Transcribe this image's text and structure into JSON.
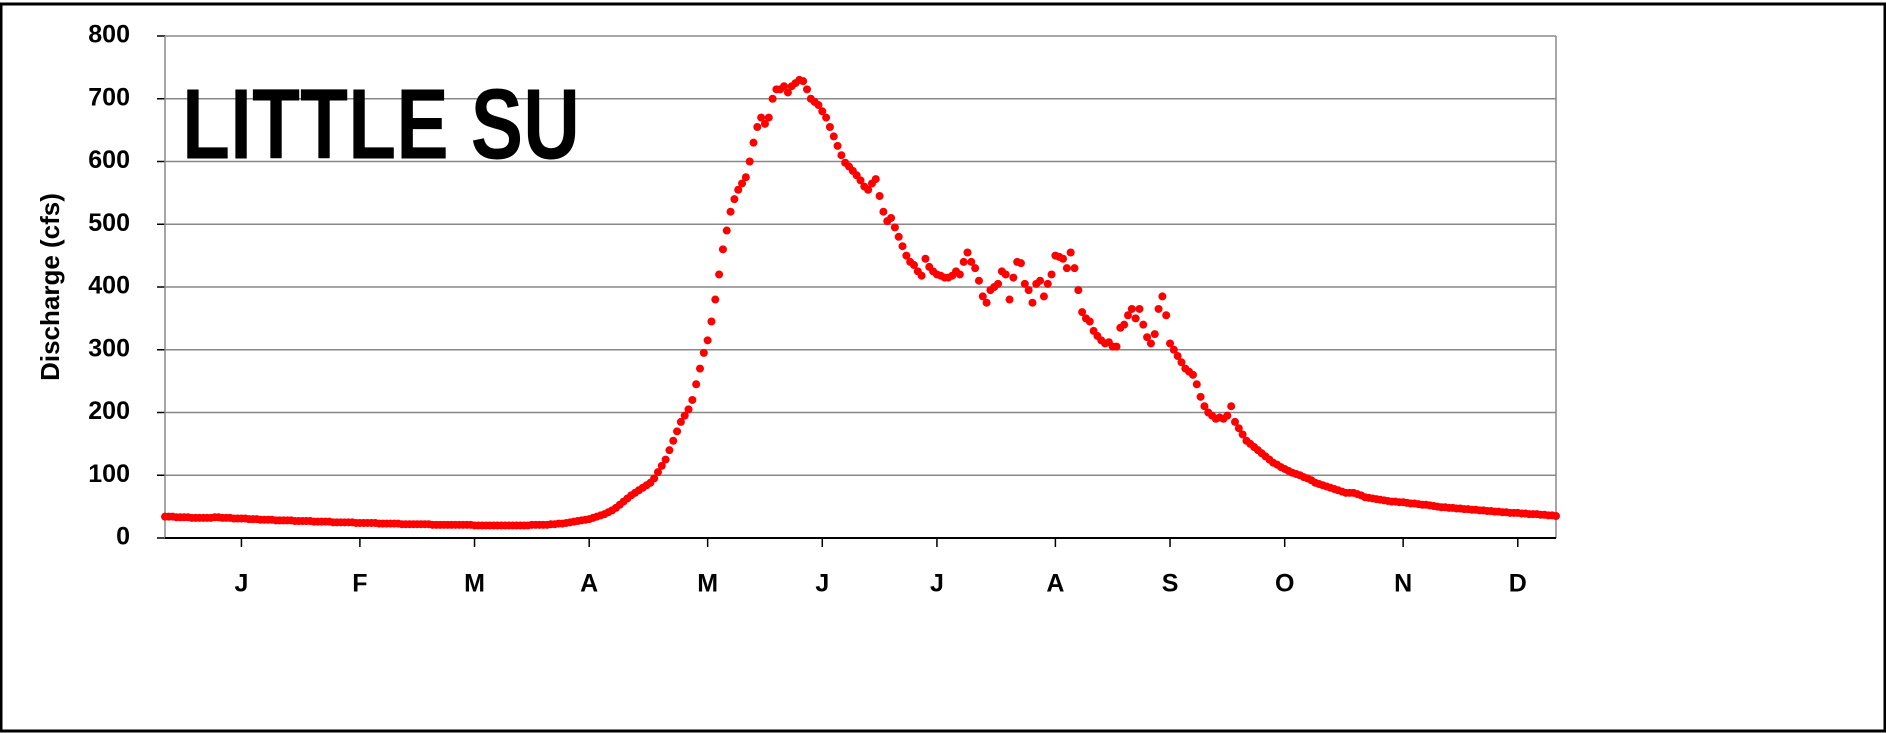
{
  "chart_data": {
    "type": "scatter",
    "title": "LITTLE SU",
    "y_label": "Discharge (cfs)",
    "color": "#ff0000",
    "grid": true,
    "xlim": [
      0,
      364
    ],
    "ylim": [
      0,
      800
    ],
    "yticks": [
      0,
      100,
      200,
      300,
      400,
      500,
      600,
      700,
      800
    ],
    "xticks": [
      {
        "value": 20,
        "label": "J"
      },
      {
        "value": 51,
        "label": "F"
      },
      {
        "value": 81,
        "label": "M"
      },
      {
        "value": 111,
        "label": "A"
      },
      {
        "value": 142,
        "label": "M"
      },
      {
        "value": 172,
        "label": "J"
      },
      {
        "value": 202,
        "label": "J"
      },
      {
        "value": 233,
        "label": "A"
      },
      {
        "value": 263,
        "label": "S"
      },
      {
        "value": 293,
        "label": "O"
      },
      {
        "value": 324,
        "label": "N"
      },
      {
        "value": 354,
        "label": "D"
      }
    ],
    "values": [
      34,
      34,
      34,
      33,
      33,
      33,
      33,
      32,
      32,
      32,
      32,
      32,
      32,
      33,
      33,
      32,
      32,
      32,
      31,
      31,
      31,
      31,
      30,
      30,
      30,
      29,
      29,
      29,
      29,
      28,
      28,
      28,
      28,
      28,
      27,
      27,
      27,
      27,
      27,
      26,
      26,
      26,
      26,
      26,
      25,
      25,
      25,
      25,
      25,
      25,
      24,
      24,
      24,
      24,
      24,
      24,
      23,
      23,
      23,
      23,
      23,
      23,
      22,
      22,
      22,
      22,
      22,
      22,
      22,
      22,
      21,
      21,
      21,
      21,
      21,
      21,
      21,
      21,
      21,
      21,
      21,
      20,
      20,
      20,
      20,
      20,
      20,
      20,
      20,
      20,
      20,
      20,
      20,
      20,
      20,
      20,
      21,
      21,
      21,
      21,
      21,
      22,
      22,
      23,
      23,
      24,
      25,
      26,
      27,
      28,
      29,
      30,
      32,
      34,
      36,
      38,
      41,
      44,
      48,
      53,
      58,
      63,
      68,
      72,
      76,
      80,
      84,
      88,
      95,
      105,
      115,
      125,
      140,
      155,
      170,
      185,
      195,
      205,
      220,
      245,
      270,
      295,
      315,
      345,
      380,
      420,
      460,
      490,
      520,
      540,
      555,
      565,
      575,
      600,
      630,
      655,
      670,
      660,
      670,
      700,
      715,
      715,
      720,
      710,
      720,
      725,
      730,
      728,
      715,
      700,
      695,
      690,
      680,
      670,
      655,
      640,
      625,
      610,
      598,
      592,
      585,
      578,
      570,
      560,
      555,
      565,
      572,
      545,
      520,
      505,
      510,
      495,
      480,
      465,
      450,
      440,
      435,
      425,
      418,
      445,
      432,
      425,
      420,
      418,
      415,
      415,
      418,
      425,
      420,
      440,
      455,
      440,
      430,
      410,
      385,
      375,
      395,
      400,
      405,
      425,
      420,
      380,
      415,
      440,
      438,
      405,
      395,
      375,
      405,
      410,
      385,
      405,
      420,
      450,
      448,
      445,
      430,
      455,
      430,
      395,
      360,
      350,
      345,
      330,
      322,
      315,
      310,
      312,
      305,
      305,
      335,
      340,
      355,
      365,
      350,
      365,
      340,
      320,
      310,
      325,
      365,
      385,
      355,
      310,
      300,
      290,
      280,
      270,
      265,
      260,
      245,
      225,
      210,
      200,
      195,
      190,
      192,
      190,
      195,
      210,
      185,
      175,
      165,
      155,
      150,
      145,
      140,
      135,
      130,
      125,
      120,
      117,
      113,
      110,
      107,
      104,
      102,
      100,
      97,
      95,
      92,
      88,
      86,
      84,
      82,
      80,
      78,
      76,
      74,
      72,
      72,
      72,
      70,
      68,
      65,
      64,
      63,
      62,
      61,
      60,
      59,
      58,
      58,
      57,
      57,
      56,
      55,
      55,
      54,
      53,
      53,
      52,
      51,
      50,
      49,
      49,
      48,
      48,
      47,
      47,
      46,
      46,
      45,
      45,
      44,
      44,
      43,
      43,
      42,
      42,
      41,
      41,
      40,
      40,
      40,
      39,
      39,
      38,
      38,
      38,
      37,
      37,
      36,
      36,
      35
    ]
  }
}
